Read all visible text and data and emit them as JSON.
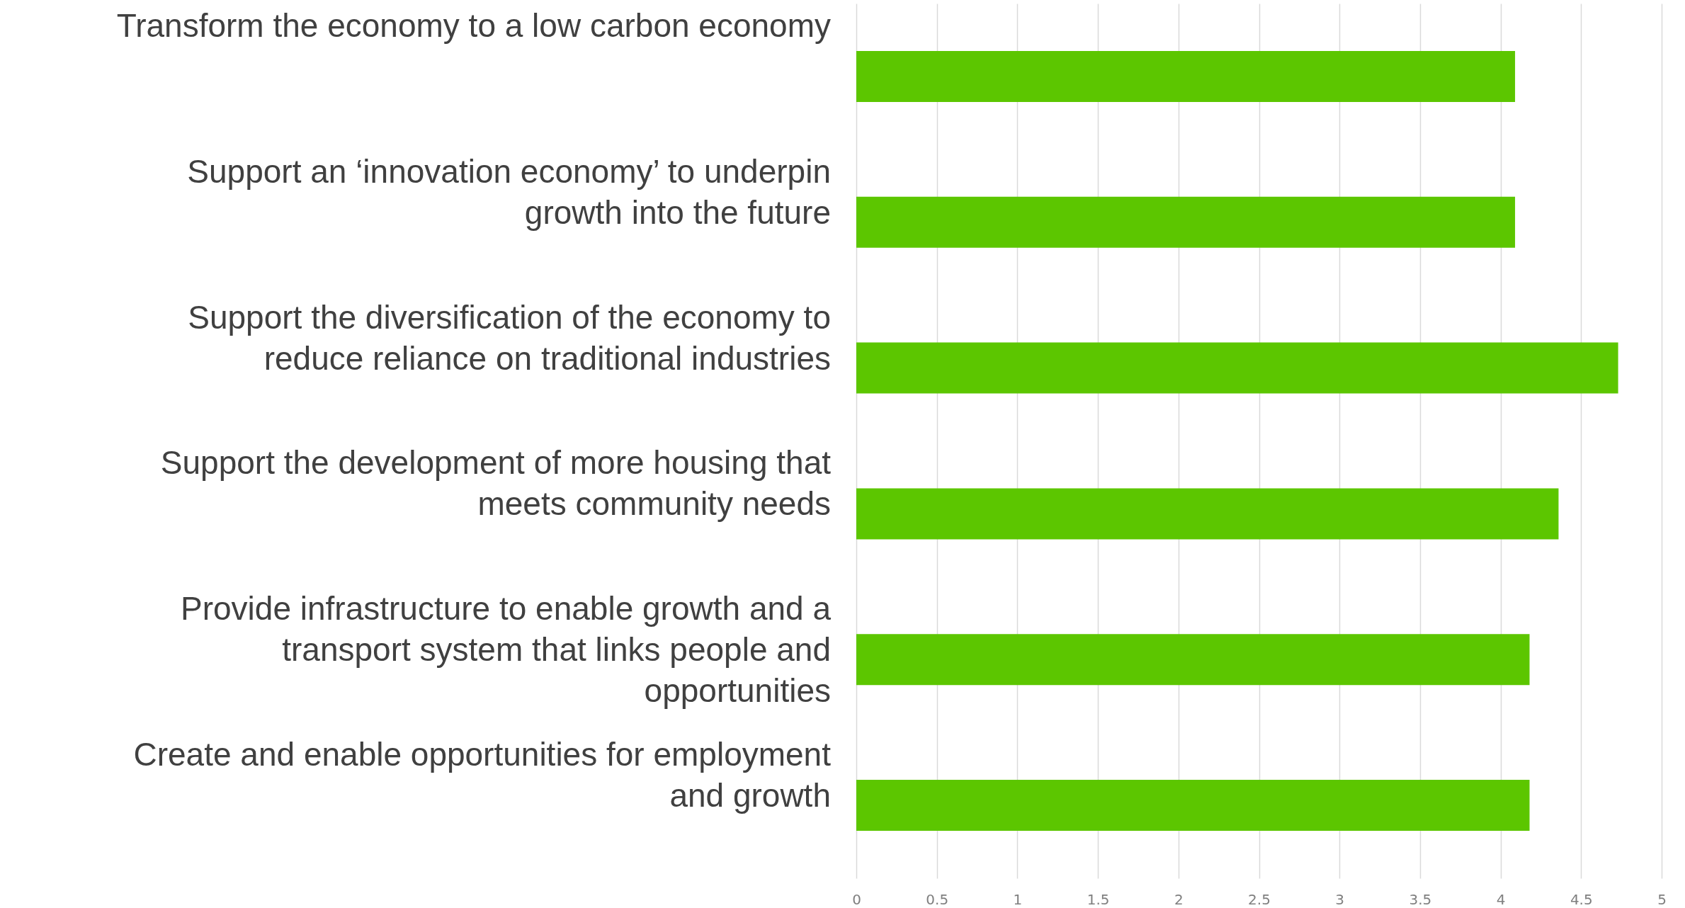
{
  "chart_data": {
    "type": "bar",
    "orientation": "horizontal",
    "categories": [
      "Transform the economy to a low carbon economy",
      "Support an ‘innovation economy’ to underpin growth into the future",
      "Support the diversification of the economy to reduce reliance on traditional industries",
      "Support the development of more housing that meets community needs",
      "Provide infrastructure to enable growth and a transport system that links people and opportunities",
      "Create and enable opportunities for employment and growth"
    ],
    "values": [
      4.09,
      4.09,
      4.73,
      4.36,
      4.18,
      4.18
    ],
    "color": "#5cc600",
    "xlim": [
      0,
      5
    ],
    "xticks": [
      0,
      0.5,
      1,
      1.5,
      2,
      2.5,
      3,
      3.5,
      4,
      4.5,
      5
    ],
    "grid": "x"
  }
}
